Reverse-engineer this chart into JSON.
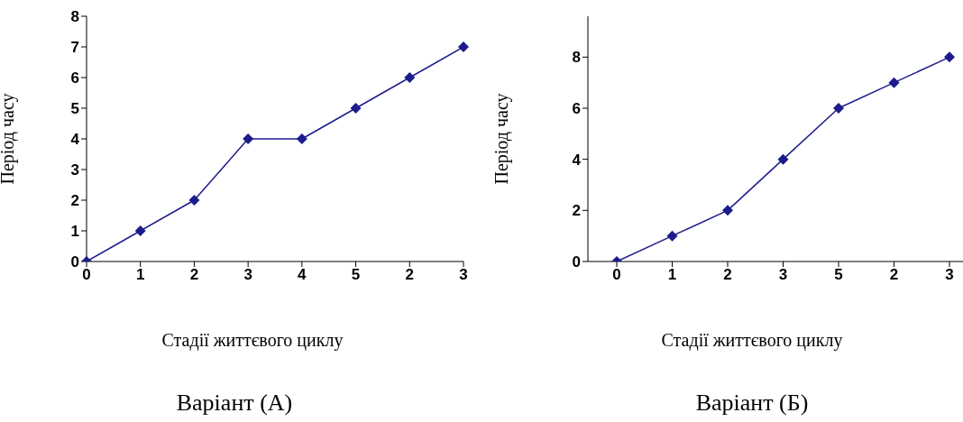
{
  "chart_data": [
    {
      "type": "line",
      "title": "Варіант (А)",
      "xlabel": "Стадії життєвого циклу",
      "ylabel": "Період часу",
      "categories": [
        "0",
        "1",
        "2",
        "3",
        "4",
        "5",
        "2",
        "3"
      ],
      "series": [
        {
          "color": "#1c1c8c",
          "values": [
            0,
            1,
            2,
            4,
            4,
            5,
            6,
            7
          ]
        }
      ],
      "ylim": [
        0,
        8
      ],
      "yticks": [
        0,
        1,
        2,
        3,
        4,
        5,
        6,
        7,
        8
      ],
      "marker": "diamond",
      "line_style": "solid",
      "grid": false,
      "legend": false
    },
    {
      "type": "line",
      "title": "Варіант (Б)",
      "xlabel": "Стадії життєвого циклу",
      "ylabel": "Період часу",
      "categories": [
        "0",
        "1",
        "2",
        "3",
        "5",
        "2",
        "3"
      ],
      "series": [
        {
          "color": "#1c1c8c",
          "values": [
            0,
            1,
            2,
            4,
            6,
            7,
            8
          ]
        }
      ],
      "ylim": [
        0,
        9.6
      ],
      "yticks": [
        0,
        2,
        4,
        6,
        8
      ],
      "marker": "diamond",
      "line_style": "solid",
      "grid": false,
      "legend": false
    }
  ]
}
